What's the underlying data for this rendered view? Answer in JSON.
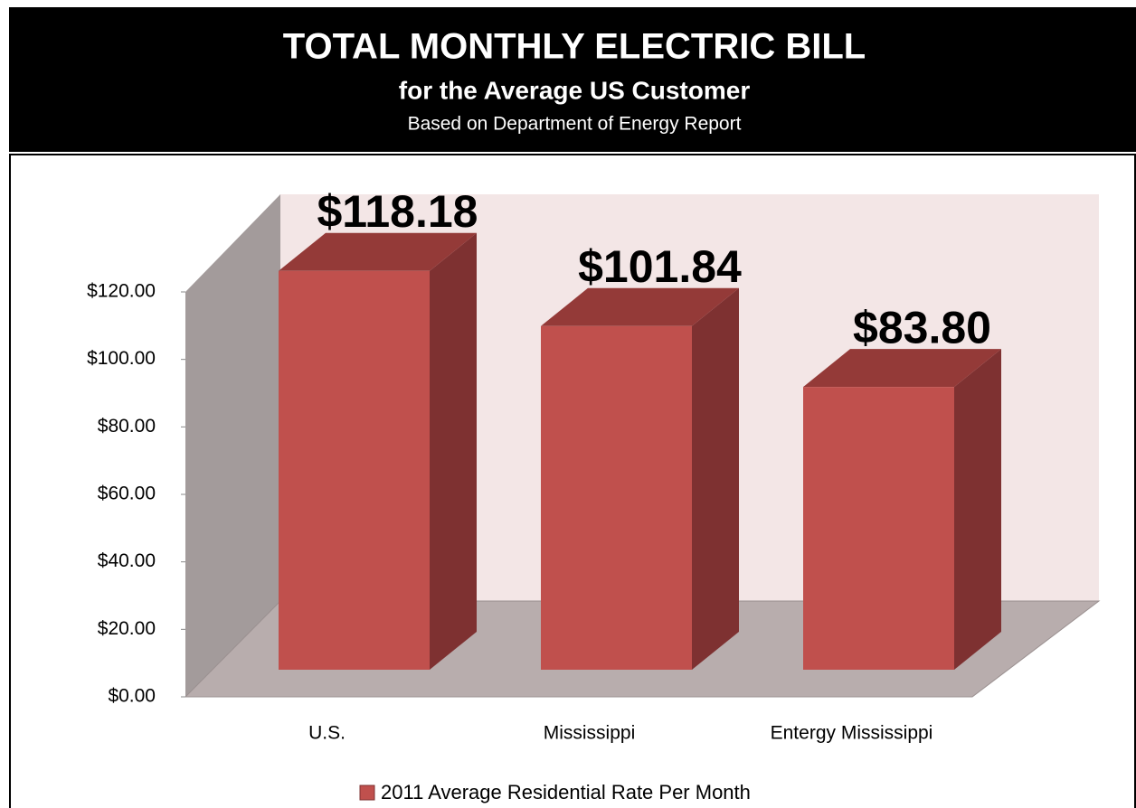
{
  "chart_data": {
    "type": "bar3d",
    "title": "TOTAL MONTHLY ELECTRIC BILL",
    "subtitle": "for the Average US Customer",
    "source": "Based on Department of Energy Report",
    "categories": [
      "U.S.",
      "Mississippi",
      "Entergy Mississippi"
    ],
    "series": [
      {
        "name": "2011 Average Residential Rate Per Month",
        "color": "#c0504d",
        "values": [
          118.18,
          101.84,
          83.8
        ],
        "value_labels": [
          "$118.18",
          "$101.84",
          "$83.80"
        ]
      }
    ],
    "ylim": [
      0,
      120
    ],
    "yticks": [
      {
        "value": 0,
        "label": "$0.00"
      },
      {
        "value": 20,
        "label": "$20.00"
      },
      {
        "value": 40,
        "label": "$40.00"
      },
      {
        "value": 60,
        "label": "$60.00"
      },
      {
        "value": 80,
        "label": "$80.00"
      },
      {
        "value": 100,
        "label": "$100.00"
      },
      {
        "value": 120,
        "label": "$120.00"
      }
    ],
    "legend": "bottom"
  }
}
